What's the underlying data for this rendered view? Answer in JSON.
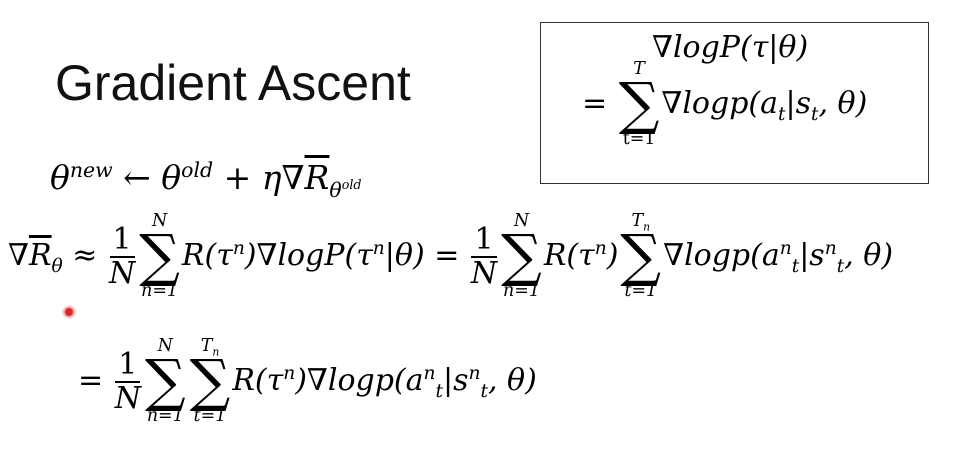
{
  "title": "Gradient Ascent",
  "box": {
    "line1": "∇logP(τ|θ)",
    "eq": "=",
    "sum_upper": "T",
    "sum_lower": "t=1",
    "term": "∇logp(a",
    "term_sub1": "t",
    "term_mid": "|s",
    "term_sub2": "t",
    "term_end": ", θ)"
  },
  "update": {
    "theta": "θ",
    "new": "new",
    "arrow": " ← θ",
    "old": "old",
    "plus": " + η∇",
    "R": "R",
    "sub": "θ",
    "subsup": "old"
  },
  "eq1": {
    "lhs_nabla": "∇",
    "lhs_R": "R",
    "lhs_sub": "θ",
    "approx": " ≈ ",
    "num": "1",
    "den": "N",
    "sum_upper": "N",
    "sum_lower": "n=1",
    "term": "R(τ",
    "n": "n",
    "term2": ")∇logP(τ",
    "term3": "|θ)",
    "eq2": " = ",
    "sum2_upper": "N",
    "sum2_lower": "n=1",
    "term4": "R(τ",
    "term5": ")",
    "sum3_upper": "T",
    "sum3_upper_sub": "n",
    "sum3_lower": "t=1",
    "term6": "∇logp(a",
    "t": "t",
    "term7": "|s",
    "term8": ", θ)"
  },
  "eq3": {
    "eq": "= ",
    "num": "1",
    "den": "N",
    "sum_upper": "N",
    "sum_lower": "n=1",
    "sum2_upper": "T",
    "sum2_upper_sub": "n",
    "sum2_lower": "t=1",
    "term": "R(τ",
    "n": "n",
    "term2": ")∇logp(a",
    "t": "t",
    "term3": "|s",
    "term4": ", θ)"
  }
}
